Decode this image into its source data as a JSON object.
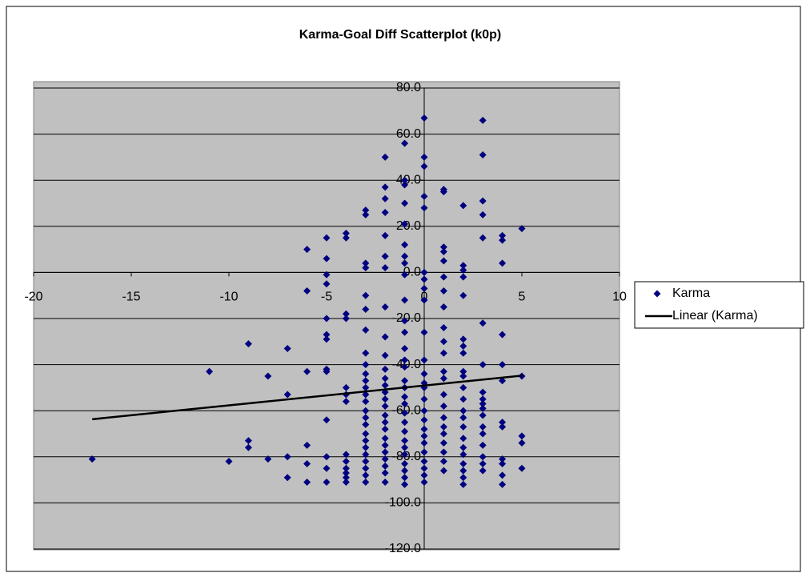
{
  "chart_data": {
    "type": "scatter",
    "title": "Karma-Goal Diff Scatterplot (k0p)",
    "xlim": [
      -20,
      10
    ],
    "ylim": [
      -120,
      80
    ],
    "xticks": [
      -20,
      -15,
      -10,
      -5,
      0,
      5,
      10
    ],
    "yticks": [
      {
        "value": -120,
        "label": "-120.0"
      },
      {
        "value": -100,
        "label": "-100.0"
      },
      {
        "value": -80,
        "label": "-80.0"
      },
      {
        "value": -60,
        "label": "-60.0"
      },
      {
        "value": -40,
        "label": "-40.0"
      },
      {
        "value": -20,
        "label": "-20.0"
      },
      {
        "value": 0,
        "label": "0.0"
      },
      {
        "value": 20,
        "label": "20.0"
      },
      {
        "value": 40,
        "label": "40.0"
      },
      {
        "value": 60,
        "label": "60.0"
      },
      {
        "value": 80,
        "label": "80.0"
      }
    ],
    "grid": true,
    "legend": "right",
    "series": [
      {
        "name": "Karma",
        "type": "scatter",
        "color": "#000080",
        "x": [
          -17,
          -11,
          -10,
          -9,
          -9,
          -9,
          -8,
          -8,
          -7,
          -7,
          -7,
          -7,
          -6,
          -6,
          -6,
          -6,
          -6,
          -6,
          -5,
          -5,
          -5,
          -5,
          -5,
          -5,
          -5,
          -5,
          -5,
          -5,
          -5,
          -5,
          -5,
          -4,
          -4,
          -4,
          -4,
          -4,
          -4,
          -4,
          -4,
          -4,
          -4,
          -4,
          -4,
          -4,
          -3,
          -3,
          -3,
          -3,
          -3,
          -3,
          -3,
          -3,
          -3,
          -3,
          -3,
          -3,
          -3,
          -3,
          -3,
          -3,
          -3,
          -3,
          -3,
          -3,
          -3,
          -3,
          -3,
          -3,
          -3,
          -2,
          -2,
          -2,
          -2,
          -2,
          -2,
          -2,
          -2,
          -2,
          -2,
          -2,
          -2,
          -2,
          -2,
          -2,
          -2,
          -2,
          -2,
          -2,
          -2,
          -2,
          -2,
          -2,
          -2,
          -2,
          -2,
          -1,
          -1,
          -1,
          -1,
          -1,
          -1,
          -1,
          -1,
          -1,
          -1,
          -1,
          -1,
          -1,
          -1,
          -1,
          -1,
          -1,
          -1,
          -1,
          -1,
          -1,
          -1,
          -1,
          -1,
          -1,
          -1,
          -1,
          -1,
          -1,
          0,
          0,
          0,
          0,
          0,
          0,
          0,
          0,
          0,
          0,
          0,
          0,
          0,
          0,
          0,
          0,
          0,
          0,
          0,
          0,
          0,
          0,
          0,
          0,
          0,
          1,
          1,
          1,
          1,
          1,
          1,
          1,
          1,
          1,
          1,
          1,
          1,
          1,
          1,
          1,
          1,
          1,
          1,
          1,
          1,
          1,
          1,
          2,
          2,
          2,
          2,
          2,
          2,
          2,
          2,
          2,
          2,
          2,
          2,
          2,
          2,
          2,
          2,
          2,
          2,
          2,
          2,
          2,
          2,
          3,
          3,
          3,
          3,
          3,
          3,
          3,
          3,
          3,
          3,
          3,
          3,
          3,
          3,
          3,
          3,
          3,
          3,
          4,
          4,
          4,
          4,
          4,
          4,
          4,
          4,
          4,
          4,
          4,
          4,
          5,
          5,
          5,
          5,
          5
        ],
        "values": [
          -81,
          -43,
          -82,
          -31,
          -73,
          -76,
          -45,
          -81,
          -33,
          -53,
          -80,
          -89,
          10,
          -8,
          -43,
          -75,
          -83,
          -91,
          15,
          6,
          -1,
          -5,
          -20,
          -27,
          -29,
          -42,
          -43,
          -64,
          -80,
          -85,
          -91,
          17,
          15,
          -18,
          -20,
          -50,
          -53,
          -56,
          -79,
          -82,
          -85,
          -87,
          -89,
          -91,
          27,
          25,
          4,
          2,
          -10,
          -16,
          -25,
          -35,
          -40,
          -44,
          -47,
          -50,
          -53,
          -56,
          -60,
          -63,
          -66,
          -70,
          -73,
          -76,
          -79,
          -82,
          -85,
          -88,
          -91,
          50,
          37,
          32,
          26,
          16,
          7,
          2,
          -15,
          -28,
          -36,
          -42,
          -46,
          -49,
          -52,
          -55,
          -58,
          -62,
          -65,
          -68,
          -72,
          -75,
          -78,
          -81,
          -84,
          -87,
          -91,
          56,
          40,
          38,
          30,
          21,
          12,
          7,
          4,
          -1,
          -12,
          -21,
          -26,
          -33,
          -38,
          -41,
          -47,
          -50,
          -54,
          -57,
          -61,
          -65,
          -69,
          -73,
          -76,
          -79,
          -83,
          -86,
          -89,
          -92,
          67,
          50,
          46,
          33,
          28,
          0,
          -3,
          -7,
          -12,
          -26,
          -38,
          -44,
          -48,
          -50,
          -55,
          -60,
          -64,
          -68,
          -71,
          -74,
          -78,
          -82,
          -85,
          -88,
          -91,
          36,
          35,
          11,
          9,
          5,
          -2,
          -8,
          -15,
          -24,
          -30,
          -35,
          -43,
          -46,
          -53,
          -58,
          -63,
          -67,
          -70,
          -74,
          -78,
          -82,
          -86,
          29,
          3,
          1,
          -2,
          -10,
          -29,
          -32,
          -35,
          -43,
          -45,
          -50,
          -55,
          -60,
          -63,
          -67,
          -72,
          -76,
          -79,
          -83,
          -86,
          -89,
          -92,
          66,
          51,
          31,
          25,
          15,
          -22,
          -40,
          -52,
          -55,
          -57,
          -59,
          -62,
          -67,
          -70,
          -75,
          -80,
          -83,
          -86,
          16,
          14,
          4,
          -27,
          -40,
          -47,
          -65,
          -67,
          -81,
          -83,
          -88,
          -92,
          19,
          -45,
          -71,
          -74,
          -85
        ]
      },
      {
        "name": "Linear (Karma)",
        "type": "line",
        "color": "#000000",
        "x": [
          -17,
          5
        ],
        "values": [
          -63.7,
          -44.8
        ]
      }
    ]
  }
}
